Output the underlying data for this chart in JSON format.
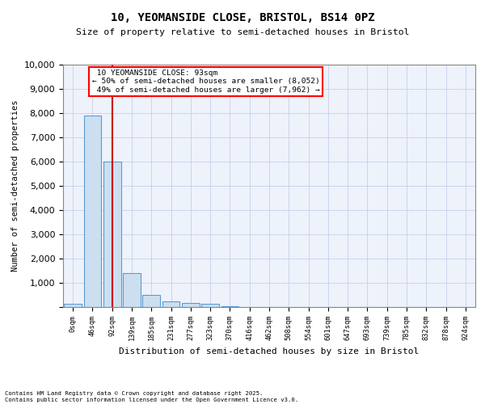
{
  "title_line1": "10, YEOMANSIDE CLOSE, BRISTOL, BS14 0PZ",
  "title_line2": "Size of property relative to semi-detached houses in Bristol",
  "xlabel": "Distribution of semi-detached houses by size in Bristol",
  "ylabel": "Number of semi-detached properties",
  "bin_labels": [
    "0sqm",
    "46sqm",
    "92sqm",
    "139sqm",
    "185sqm",
    "231sqm",
    "277sqm",
    "323sqm",
    "370sqm",
    "416sqm",
    "462sqm",
    "508sqm",
    "554sqm",
    "601sqm",
    "647sqm",
    "693sqm",
    "739sqm",
    "785sqm",
    "832sqm",
    "878sqm",
    "924sqm"
  ],
  "bar_values": [
    150,
    7900,
    6000,
    1400,
    500,
    230,
    170,
    130,
    50,
    0,
    0,
    0,
    0,
    0,
    0,
    0,
    0,
    0,
    0,
    0,
    0
  ],
  "bar_color": "#ccdff0",
  "bar_edge_color": "#5B9BD5",
  "red_line_x": 2.0,
  "annotation_line1": "10 YEOMANSIDE CLOSE: 93sqm",
  "annotation_line2": "← 50% of semi-detached houses are smaller (8,052)",
  "annotation_line3": "49% of semi-detached houses are larger (7,962) →",
  "ylim_max": 10000,
  "yticks": [
    0,
    1000,
    2000,
    3000,
    4000,
    5000,
    6000,
    7000,
    8000,
    9000,
    10000
  ],
  "footer_line1": "Contains HM Land Registry data © Crown copyright and database right 2025.",
  "footer_line2": "Contains public sector information licensed under the Open Government Licence v3.0.",
  "bg_color": "#eef2fb",
  "grid_color": "#c8d0e8"
}
